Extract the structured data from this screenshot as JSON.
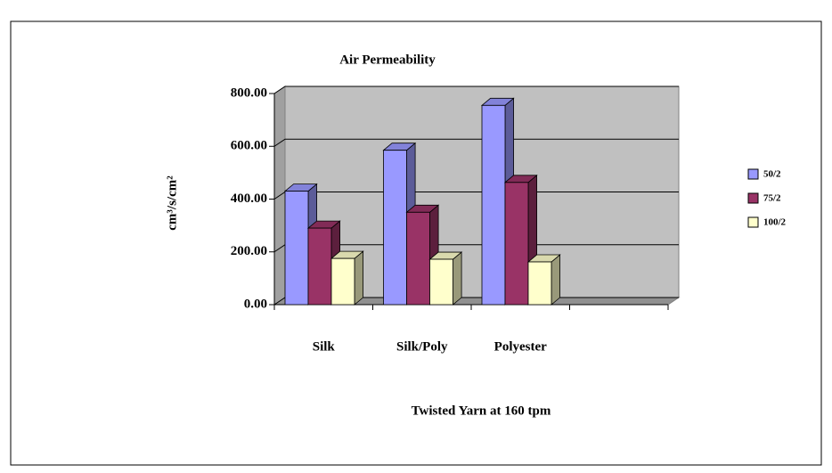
{
  "chart_data": {
    "type": "bar3d",
    "title": "Air Permeability",
    "xlabel": "Twisted Yarn at 160 tpm",
    "ylabel": "cm³/s/cm²",
    "categories": [
      "Silk",
      "Silk/Poly",
      "Polyester",
      null
    ],
    "series": [
      {
        "name": "50/2",
        "color": "#9999ff",
        "values": [
          430,
          585,
          755,
          null
        ]
      },
      {
        "name": "75/2",
        "color": "#993366",
        "values": [
          290,
          350,
          463,
          null
        ]
      },
      {
        "name": "100/2",
        "color": "#ffffcc",
        "values": [
          175,
          172,
          162,
          null
        ]
      }
    ],
    "ylim": [
      0,
      800
    ],
    "yticks": [
      {
        "value": 0,
        "label": "0.00"
      },
      {
        "value": 200,
        "label": "200.00"
      },
      {
        "value": 400,
        "label": "400.00"
      },
      {
        "value": 600,
        "label": "600.00"
      },
      {
        "value": 800,
        "label": "800.00"
      }
    ],
    "grid": true,
    "legend": "right",
    "plot_background": "#c0c0c0"
  }
}
